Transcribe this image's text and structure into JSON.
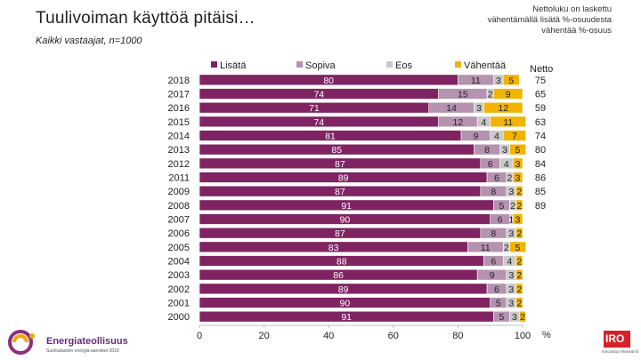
{
  "header": {
    "title": "Tuulivoiman käyttöä pitäisi…",
    "subtitle": "Kaikki vastaajat, n=1000",
    "note_lines": [
      "Nettoluku on laskettu",
      "vähentämällä lisätä %-osuudesta",
      "vähentää %-osuus"
    ]
  },
  "logos": {
    "left_name": "Energiateollisuus",
    "left_tagline": "Suomalaisten energia-asenteet 2018",
    "right_name": "IRO",
    "right_tagline": "Innovation Research"
  },
  "colors": {
    "Lisätä": "#7f2362",
    "Sopiva": "#b592b0",
    "Eos": "#c9c9c9",
    "Vähentää": "#f2b400"
  },
  "chart_data": {
    "type": "bar",
    "orientation": "horizontal",
    "stacked": true,
    "categories": [
      "2018",
      "2017",
      "2016",
      "2015",
      "2014",
      "2013",
      "2012",
      "2011",
      "2009",
      "2008",
      "2007",
      "2006",
      "2005",
      "2004",
      "2003",
      "2002",
      "2001",
      "2000"
    ],
    "series": [
      {
        "name": "Lisätä",
        "values": [
          80,
          74,
          71,
          74,
          81,
          85,
          87,
          89,
          87,
          91,
          90,
          87,
          83,
          88,
          86,
          89,
          90,
          91
        ]
      },
      {
        "name": "Sopiva",
        "values": [
          11,
          15,
          14,
          12,
          9,
          8,
          6,
          6,
          8,
          5,
          6,
          8,
          11,
          6,
          9,
          6,
          5,
          5
        ]
      },
      {
        "name": "Eos",
        "values": [
          3,
          2,
          3,
          4,
          4,
          3,
          4,
          2,
          3,
          2,
          1,
          3,
          2,
          4,
          3,
          3,
          3,
          3
        ]
      },
      {
        "name": "Vähentää",
        "values": [
          5,
          9,
          12,
          11,
          7,
          5,
          3,
          3,
          2,
          2,
          3,
          2,
          5,
          2,
          2,
          2,
          2,
          2
        ]
      }
    ],
    "labels": [
      [
        "80",
        "11",
        "3",
        "5"
      ],
      [
        "74",
        "15",
        "2",
        "9"
      ],
      [
        "71",
        "14",
        "3",
        "12"
      ],
      [
        "74",
        "12",
        "4",
        "11"
      ],
      [
        "81",
        "9",
        "4",
        "7"
      ],
      [
        "85",
        "8",
        "3",
        "5"
      ],
      [
        "87",
        "6",
        "4",
        "3"
      ],
      [
        "89",
        "6",
        "2",
        "3"
      ],
      [
        "87",
        "8",
        "3",
        "2"
      ],
      [
        "91",
        "5",
        "2",
        "2"
      ],
      [
        "90",
        "6",
        "1",
        "3"
      ],
      [
        "87",
        "8",
        "3",
        "2"
      ],
      [
        "83",
        "11",
        "2",
        "5"
      ],
      [
        "88",
        "6",
        "4",
        "2"
      ],
      [
        "86",
        "9",
        "3",
        "2"
      ],
      [
        "89",
        "6",
        "3",
        "2"
      ],
      [
        "90",
        "5",
        "3",
        "2"
      ],
      [
        "91",
        "5",
        "3",
        "2"
      ]
    ],
    "netto_header": "Netto",
    "netto": [
      "75",
      "65",
      "59",
      "63",
      "74",
      "80",
      "84",
      "86",
      "85",
      "89",
      "",
      "",
      "",
      "",
      "",
      "",
      "",
      ""
    ],
    "x_ticks": [
      "0",
      "20",
      "40",
      "60",
      "80",
      "100"
    ],
    "xlim": [
      0,
      100
    ],
    "x_unit": "%",
    "legend_position": "top"
  }
}
